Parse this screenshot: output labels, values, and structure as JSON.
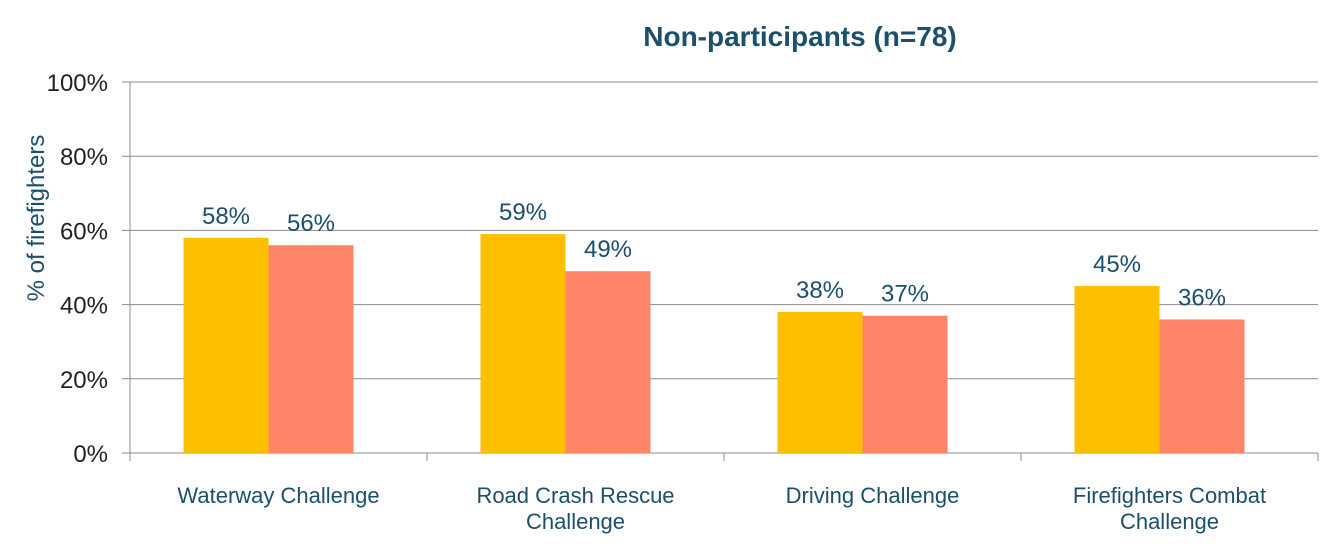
{
  "chart_data": {
    "type": "bar",
    "title": "Non-participants (n=78)",
    "ylabel": "% of firefighters",
    "categories": [
      "Waterway Challenge",
      "Road Crash Rescue Challenge",
      "Driving Challenge",
      "Firefighters Combat Challenge"
    ],
    "series": [
      {
        "color": "#fdbf00",
        "values": [
          58,
          59,
          38,
          45
        ],
        "value_labels": [
          "58%",
          "59%",
          "38%",
          "45%"
        ]
      },
      {
        "color": "#fe8468",
        "values": [
          56,
          49,
          37,
          36
        ],
        "value_labels": [
          "56%",
          "49%",
          "37%",
          "36%"
        ]
      }
    ],
    "ylim": [
      0,
      100
    ],
    "yticks": [
      {
        "value": 0,
        "label": "0%"
      },
      {
        "value": 20,
        "label": "20%"
      },
      {
        "value": 40,
        "label": "40%"
      },
      {
        "value": 60,
        "label": "60%"
      },
      {
        "value": 80,
        "label": "80%"
      },
      {
        "value": 100,
        "label": "100%"
      }
    ],
    "grid": true
  }
}
